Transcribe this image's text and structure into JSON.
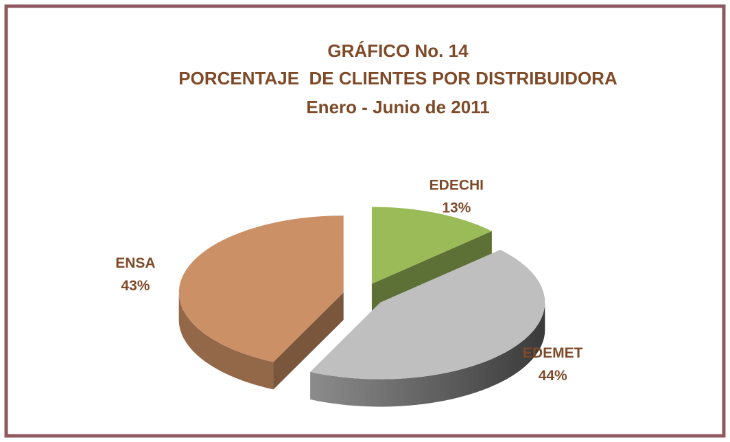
{
  "chart_data": {
    "type": "pie3d",
    "title": [
      "GRÁFICO No. 14",
      "PORCENTAJE  DE CLIENTES POR DISTRIBUIDORA",
      "Enero - Junio de 2011"
    ],
    "categories": [
      "EDECHI",
      "EDEMET",
      "ENSA"
    ],
    "values": [
      13,
      44,
      43
    ],
    "value_labels": [
      "13%",
      "44%",
      "43%"
    ],
    "colors": [
      "#9bbb59",
      "#bfbfbf",
      "#cc9066"
    ]
  }
}
